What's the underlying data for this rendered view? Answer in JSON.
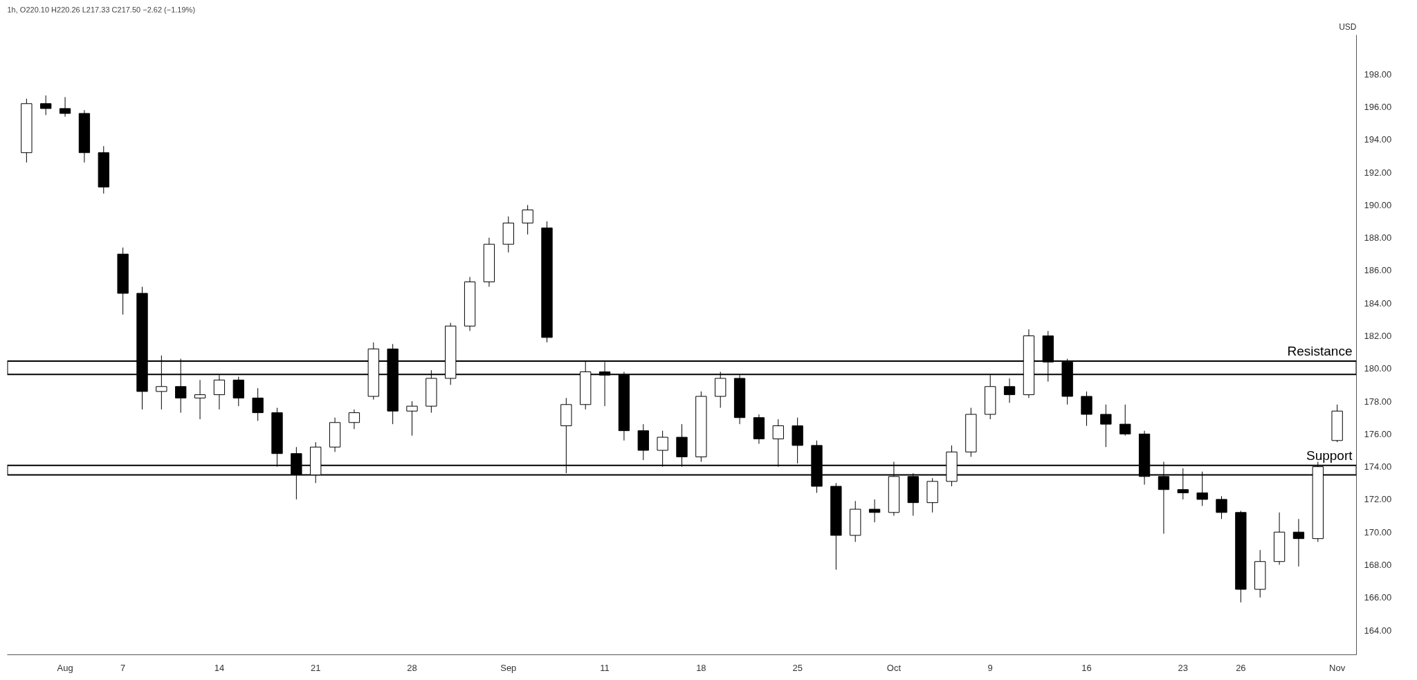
{
  "chart_data": {
    "type": "candlestick",
    "title": "1h, O220.10 H220.26 L217.33 C217.50 −2.62 (−1.19%)",
    "ylabel": "USD",
    "color": "#000000",
    "categories": [
      null,
      null,
      "Aug",
      null,
      null,
      "7",
      null,
      null,
      null,
      null,
      "14",
      null,
      null,
      null,
      null,
      "21",
      null,
      null,
      null,
      null,
      "28",
      null,
      null,
      null,
      null,
      "Sep",
      null,
      null,
      null,
      null,
      "11",
      null,
      null,
      null,
      null,
      "18",
      null,
      null,
      null,
      null,
      "25",
      null,
      null,
      null,
      null,
      "Oct",
      null,
      null,
      null,
      null,
      "9",
      null,
      null,
      null,
      null,
      "16",
      null,
      null,
      null,
      null,
      "23",
      null,
      null,
      "26",
      null,
      null,
      null,
      null,
      "Nov"
    ],
    "ohlc": [
      [
        193.2,
        196.5,
        192.6,
        196.2
      ],
      [
        196.2,
        196.7,
        195.5,
        195.9
      ],
      [
        195.9,
        196.6,
        195.4,
        195.6
      ],
      [
        195.6,
        195.8,
        192.6,
        193.2
      ],
      [
        193.2,
        193.6,
        190.7,
        191.1
      ],
      [
        187.0,
        187.4,
        183.3,
        184.6
      ],
      [
        184.6,
        185.0,
        177.5,
        178.6
      ],
      [
        178.6,
        180.8,
        177.5,
        178.9
      ],
      [
        178.9,
        180.6,
        177.3,
        178.2
      ],
      [
        178.2,
        179.3,
        176.9,
        178.4
      ],
      [
        178.4,
        179.6,
        177.5,
        179.3
      ],
      [
        179.3,
        179.5,
        177.7,
        178.2
      ],
      [
        178.2,
        178.8,
        176.8,
        177.3
      ],
      [
        177.3,
        177.6,
        174.0,
        174.8
      ],
      [
        174.8,
        175.2,
        172.0,
        173.5
      ],
      [
        173.5,
        175.5,
        173.0,
        175.2
      ],
      [
        175.2,
        177.0,
        174.9,
        176.7
      ],
      [
        176.7,
        177.5,
        176.3,
        177.3
      ],
      [
        178.3,
        181.6,
        178.1,
        181.2
      ],
      [
        181.2,
        181.5,
        176.6,
        177.4
      ],
      [
        177.4,
        178.0,
        175.9,
        177.7
      ],
      [
        177.7,
        179.9,
        177.3,
        179.4
      ],
      [
        179.4,
        182.8,
        179.0,
        182.6
      ],
      [
        182.6,
        185.6,
        182.3,
        185.3
      ],
      [
        185.3,
        188.0,
        185.0,
        187.6
      ],
      [
        187.6,
        189.3,
        187.1,
        188.9
      ],
      [
        188.9,
        190.0,
        188.2,
        189.7
      ],
      [
        188.6,
        189.0,
        181.6,
        181.9
      ],
      [
        176.5,
        178.2,
        173.6,
        177.8
      ],
      [
        177.8,
        180.5,
        177.5,
        179.8
      ],
      [
        179.8,
        180.4,
        177.7,
        179.6
      ],
      [
        179.6,
        179.8,
        175.6,
        176.2
      ],
      [
        176.2,
        176.6,
        174.4,
        175.0
      ],
      [
        175.0,
        176.2,
        174.0,
        175.8
      ],
      [
        175.8,
        176.6,
        174.0,
        174.6
      ],
      [
        174.6,
        178.6,
        174.3,
        178.3
      ],
      [
        178.3,
        179.8,
        177.6,
        179.4
      ],
      [
        179.4,
        179.6,
        176.6,
        177.0
      ],
      [
        177.0,
        177.2,
        175.4,
        175.7
      ],
      [
        175.7,
        176.9,
        174.0,
        176.5
      ],
      [
        176.5,
        177.0,
        174.2,
        175.3
      ],
      [
        175.3,
        175.6,
        172.4,
        172.8
      ],
      [
        172.8,
        173.0,
        167.7,
        169.8
      ],
      [
        169.8,
        171.9,
        169.4,
        171.4
      ],
      [
        171.4,
        172.0,
        170.6,
        171.2
      ],
      [
        171.2,
        174.3,
        171.0,
        173.4
      ],
      [
        173.4,
        173.6,
        171.0,
        171.8
      ],
      [
        171.8,
        173.3,
        171.2,
        173.1
      ],
      [
        173.1,
        175.3,
        172.8,
        174.9
      ],
      [
        174.9,
        177.6,
        174.6,
        177.2
      ],
      [
        177.2,
        179.6,
        176.9,
        178.9
      ],
      [
        178.9,
        179.4,
        177.9,
        178.4
      ],
      [
        178.4,
        182.4,
        178.2,
        182.0
      ],
      [
        182.0,
        182.3,
        179.2,
        180.4
      ],
      [
        180.4,
        180.6,
        177.8,
        178.3
      ],
      [
        178.3,
        178.6,
        176.5,
        177.2
      ],
      [
        177.2,
        177.8,
        175.2,
        176.6
      ],
      [
        176.6,
        177.8,
        175.9,
        176.0
      ],
      [
        176.0,
        176.2,
        172.9,
        173.4
      ],
      [
        173.4,
        174.3,
        169.9,
        172.6
      ],
      [
        172.6,
        173.9,
        172.0,
        172.4
      ],
      [
        172.4,
        173.7,
        171.6,
        172.0
      ],
      [
        172.0,
        172.2,
        170.8,
        171.2
      ],
      [
        171.2,
        171.3,
        165.7,
        166.5
      ],
      [
        166.5,
        168.9,
        166.0,
        168.2
      ],
      [
        168.2,
        171.2,
        168.0,
        170.0
      ],
      [
        170.0,
        170.8,
        167.9,
        169.6
      ],
      [
        169.6,
        174.3,
        169.4,
        174.0
      ],
      [
        175.6,
        177.8,
        175.5,
        177.4
      ]
    ],
    "ylim": [
      162.5,
      200.4
    ],
    "yticks": [
      {
        "value": 164,
        "label": "164.00"
      },
      {
        "value": 166,
        "label": "166.00"
      },
      {
        "value": 168,
        "label": "168.00"
      },
      {
        "value": 170,
        "label": "170.00"
      },
      {
        "value": 172,
        "label": "172.00"
      },
      {
        "value": 174,
        "label": "174.00"
      },
      {
        "value": 176,
        "label": "176.00"
      },
      {
        "value": 178,
        "label": "178.00"
      },
      {
        "value": 180,
        "label": "180.00"
      },
      {
        "value": 182,
        "label": "182.00"
      },
      {
        "value": 184,
        "label": "184.00"
      },
      {
        "value": 186,
        "label": "186.00"
      },
      {
        "value": 188,
        "label": "188.00"
      },
      {
        "value": 190,
        "label": "190.00"
      },
      {
        "value": 192,
        "label": "192.00"
      },
      {
        "value": 194,
        "label": "194.00"
      },
      {
        "value": 196,
        "label": "196.00"
      },
      {
        "value": 198,
        "label": "198.00"
      }
    ],
    "bands": [
      {
        "axis": "y",
        "from": 179.64,
        "to": 180.46,
        "label": "Resistance",
        "color": "#ffffff"
      },
      {
        "axis": "y",
        "from": 173.5,
        "to": 174.08,
        "label": "Support",
        "color": "#ffffff"
      }
    ]
  }
}
